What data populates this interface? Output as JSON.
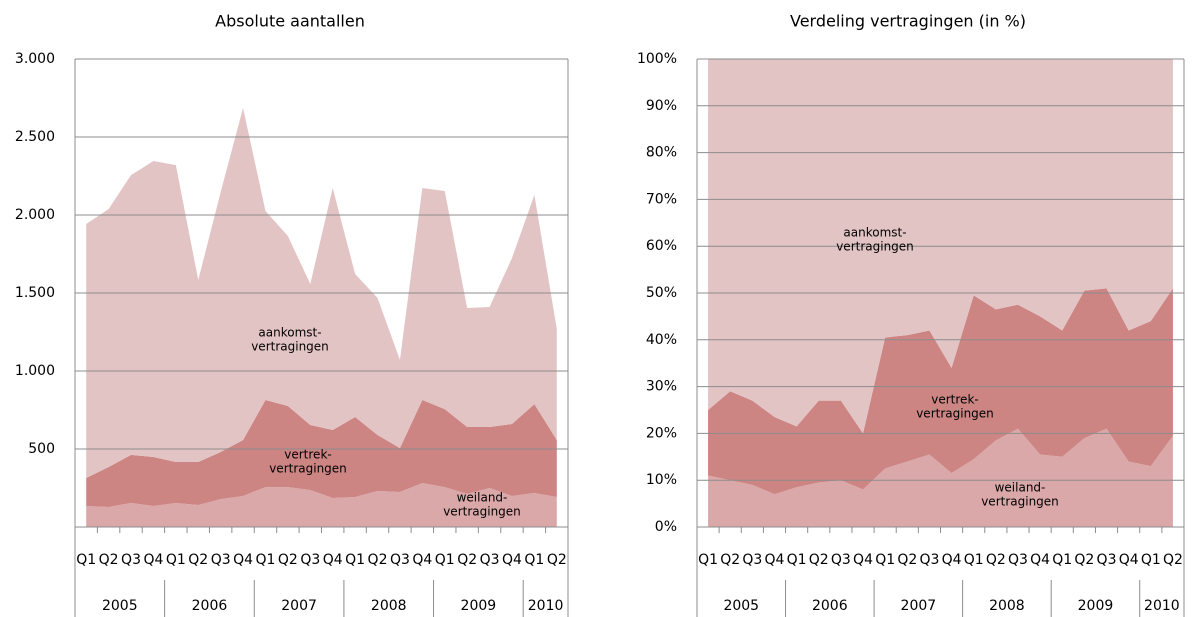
{
  "chart_data": [
    {
      "type": "stacked-area",
      "title": "Absolute aantallen",
      "categories": [
        "Q1",
        "Q2",
        "Q3",
        "Q4",
        "Q1",
        "Q2",
        "Q3",
        "Q4",
        "Q1",
        "Q2",
        "Q3",
        "Q4",
        "Q1",
        "Q2",
        "Q3",
        "Q4",
        "Q1",
        "Q2",
        "Q3",
        "Q4",
        "Q1",
        "Q2"
      ],
      "x_groups": [
        "2005",
        null,
        null,
        null,
        "2006",
        null,
        null,
        null,
        "2007",
        null,
        null,
        null,
        "2008",
        null,
        null,
        null,
        "2009",
        null,
        null,
        null,
        "2010",
        null
      ],
      "series": [
        {
          "label": [
            "weiland-",
            "vertragingen"
          ],
          "color": "#dba8a9",
          "values": [
            135,
            128,
            154,
            135,
            154,
            141,
            179,
            199,
            256,
            256,
            237,
            186,
            192,
            231,
            224,
            282,
            256,
            212,
            250,
            199,
            218,
            192
          ]
        },
        {
          "label": [
            "vertrek-",
            "vertragingen"
          ],
          "color": "#cc8583",
          "values": [
            179,
            257,
            308,
            314,
            263,
            276,
            302,
            359,
            558,
            520,
            417,
            436,
            513,
            359,
            282,
            532,
            500,
            429,
            391,
            461,
            570,
            366
          ]
        },
        {
          "label": [
            "aankomst-",
            "vertragingen"
          ],
          "color": "#e3c4c5",
          "values": [
            1628,
            1653,
            1794,
            1897,
            1903,
            1166,
            1666,
            2128,
            1212,
            1089,
            904,
            1551,
            917,
            878,
            565,
            1359,
            1398,
            763,
            769,
            1064,
            1340,
            711
          ]
        }
      ],
      "ylim": [
        0,
        3000
      ],
      "yticks": [
        500,
        {
          "value": 1000,
          "label": "1.000"
        },
        {
          "value": 1500,
          "label": "1.500"
        },
        {
          "value": 2000,
          "label": "2.000"
        },
        {
          "value": 2500,
          "label": "2.500"
        },
        {
          "value": 3000,
          "label": "3.000"
        }
      ],
      "grid": true
    },
    {
      "type": "stacked-area",
      "title": "Verdeling vertragingen (in %)",
      "categories": [
        "Q1",
        "Q2",
        "Q3",
        "Q4",
        "Q1",
        "Q2",
        "Q3",
        "Q4",
        "Q1",
        "Q2",
        "Q3",
        "Q4",
        "Q1",
        "Q2",
        "Q3",
        "Q4",
        "Q1",
        "Q2",
        "Q3",
        "Q4",
        "Q1",
        "Q2"
      ],
      "x_groups": [
        "2005",
        null,
        null,
        null,
        "2006",
        null,
        null,
        null,
        "2007",
        null,
        null,
        null,
        "2008",
        null,
        null,
        null,
        "2009",
        null,
        null,
        null,
        "2010",
        null
      ],
      "series": [
        {
          "label": [
            "weiland-",
            "vertragingen"
          ],
          "color": "#dba8a9",
          "values": [
            11,
            10,
            9,
            7,
            8.5,
            9.5,
            10,
            8,
            12.5,
            14,
            15.5,
            11.5,
            14.5,
            18.5,
            21,
            15.5,
            15,
            19,
            21,
            14,
            13,
            19.5
          ]
        },
        {
          "label": [
            "vertrek-",
            "vertragingen"
          ],
          "color": "#cc8583",
          "values": [
            14,
            19,
            18,
            16.5,
            13,
            17.5,
            17,
            12,
            28,
            27,
            26.5,
            22.5,
            35,
            28,
            26.5,
            29.5,
            27,
            31.5,
            30,
            28,
            31,
            31.5
          ]
        },
        {
          "label": [
            "aankomst-",
            "vertragingen"
          ],
          "color": "#e3c4c5",
          "values": [
            75,
            71,
            73,
            76.5,
            78.5,
            73,
            73,
            80,
            59.5,
            59,
            58,
            66,
            50.5,
            53.5,
            52.5,
            55,
            58,
            49.5,
            49,
            58,
            56,
            49
          ]
        }
      ],
      "ylim": [
        0,
        100
      ],
      "yticks": [
        {
          "value": 0,
          "label": "0%"
        },
        {
          "value": 10,
          "label": "10%"
        },
        {
          "value": 20,
          "label": "20%"
        },
        {
          "value": 30,
          "label": "30%"
        },
        {
          "value": 40,
          "label": "40%"
        },
        {
          "value": 50,
          "label": "50%"
        },
        {
          "value": 60,
          "label": "60%"
        },
        {
          "value": 70,
          "label": "70%"
        },
        {
          "value": 80,
          "label": "80%"
        },
        {
          "value": 90,
          "label": "90%"
        },
        {
          "value": 100,
          "label": "100%"
        }
      ],
      "grid": true
    }
  ]
}
